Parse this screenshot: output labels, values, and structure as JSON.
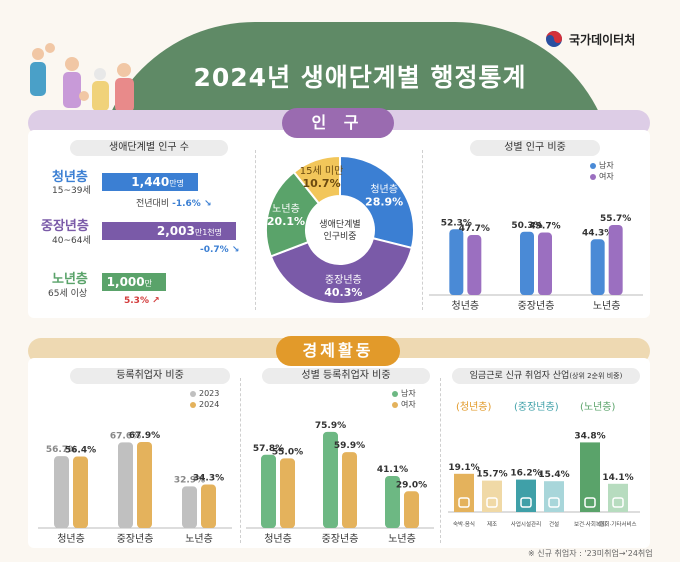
{
  "header": {
    "title": "2024년 생애단계별 행정통계",
    "org": "국가데이터처"
  },
  "colors": {
    "youth": "#3b7fd3",
    "middle": "#7a5aa8",
    "senior": "#5aa36a",
    "youth_light": "#f2c65a",
    "male": "#4a8ad6",
    "female": "#9b6fc0",
    "gray": "#c0c0c0",
    "gold": "#e4b25c",
    "green": "#6db883",
    "green_light": "#a9d8b4"
  },
  "population": {
    "section_title": "인 구",
    "count": {
      "title": "생애단계별 인구 수",
      "groups": [
        {
          "name": "청년층",
          "age": "15~39세",
          "value": "1,440",
          "unit": "만명",
          "change_label": "전년대비",
          "change": "-1.6%",
          "dir": "down"
        },
        {
          "name": "중장년층",
          "age": "40~64세",
          "value": "2,003",
          "unit": "만1천명",
          "change": "-0.7%",
          "dir": "down"
        },
        {
          "name": "노년층",
          "age": "65세 이상",
          "value": "1,000",
          "unit": "만명",
          "change": "5.3%",
          "dir": "up"
        }
      ]
    },
    "donut": {
      "center": [
        "생애단계별",
        "인구비중"
      ],
      "slices": [
        {
          "label": "청년층",
          "value": "28.9%"
        },
        {
          "label": "중장년층",
          "value": "40.3%"
        },
        {
          "label": "노년층",
          "value": "20.1%"
        },
        {
          "label": "15세 미만",
          "value": "10.7%"
        }
      ]
    },
    "gender": {
      "title": "성별 인구 비중",
      "legend": [
        "남자",
        "여자"
      ]
    }
  },
  "economy": {
    "section_title": "경제활동",
    "registered": {
      "title": "등록취업자 비중",
      "legend": [
        "2023",
        "2024"
      ]
    },
    "gender": {
      "title": "성별 등록취업자 비중",
      "legend": [
        "남자",
        "여자"
      ]
    },
    "industry": {
      "title": "임금근로 신규 취업자 산업",
      "note": "(상위 2순위 비중)",
      "groups": [
        "(청년층)",
        "(중장년층)",
        "(노년층)"
      ]
    },
    "footnote": "※ 신규 취업자 : '23미취업→'24취업"
  },
  "chart_data": [
    {
      "type": "bar",
      "title": "생애단계별 인구 수",
      "orientation": "horizontal",
      "categories": [
        "청년층",
        "중장년층",
        "노년층"
      ],
      "values": [
        1440,
        2003.1,
        1000
      ],
      "unit": "만명",
      "change": [
        "-1.6%",
        "-0.7%",
        "5.3%"
      ]
    },
    {
      "type": "pie",
      "title": "생애단계별 인구비중",
      "categories": [
        "청년층",
        "중장년층",
        "노년층",
        "15세 미만"
      ],
      "values": [
        28.9,
        40.3,
        20.1,
        10.7
      ]
    },
    {
      "type": "bar",
      "title": "성별 인구 비중",
      "categories": [
        "청년층",
        "중장년층",
        "노년층"
      ],
      "series": [
        {
          "name": "남자",
          "values": [
            52.3,
            50.3,
            44.3
          ]
        },
        {
          "name": "여자",
          "values": [
            47.7,
            49.7,
            55.7
          ]
        }
      ],
      "ylim": [
        0,
        70
      ]
    },
    {
      "type": "bar",
      "title": "등록취업자 비중",
      "categories": [
        "청년층",
        "중장년층",
        "노년층"
      ],
      "series": [
        {
          "name": "2023",
          "values": [
            56.7,
            67.6,
            32.9
          ]
        },
        {
          "name": "2024",
          "values": [
            56.4,
            67.9,
            34.3
          ]
        }
      ],
      "ylim": [
        0,
        90
      ]
    },
    {
      "type": "bar",
      "title": "성별 등록취업자 비중",
      "categories": [
        "청년층",
        "중장년층",
        "노년층"
      ],
      "series": [
        {
          "name": "남자",
          "values": [
            57.8,
            75.9,
            41.1
          ]
        },
        {
          "name": "여자",
          "values": [
            55.0,
            59.9,
            29.0
          ]
        }
      ],
      "ylim": [
        0,
        90
      ]
    },
    {
      "type": "bar",
      "title": "임금근로 신규 취업자 산업",
      "groups": [
        "(청년층)",
        "(중장년층)",
        "(노년층)"
      ],
      "categories": [
        "숙박·음식",
        "제조",
        "사업시설관리",
        "건설",
        "보건·사회복지",
        "협회·기타서비스"
      ],
      "values": [
        19.1,
        15.7,
        16.2,
        15.4,
        34.8,
        14.1
      ],
      "ylim": [
        0,
        40
      ]
    }
  ]
}
